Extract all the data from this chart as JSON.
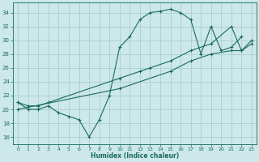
{
  "xlabel": "Humidex (Indice chaleur)",
  "bg_color": "#cce8e8",
  "grid_color": "#aacece",
  "line_color": "#1a6b5a",
  "xlim": [
    -0.5,
    23.5
  ],
  "ylim": [
    15,
    35.5
  ],
  "yticks": [
    16,
    18,
    20,
    22,
    24,
    26,
    28,
    30,
    32,
    34
  ],
  "xticks": [
    0,
    1,
    2,
    3,
    4,
    5,
    6,
    7,
    8,
    9,
    10,
    11,
    12,
    13,
    14,
    15,
    16,
    17,
    18,
    19,
    20,
    21,
    22,
    23
  ],
  "line1_x": [
    0,
    1,
    2,
    3,
    4,
    5,
    6,
    7,
    8,
    9,
    10,
    11,
    12,
    13,
    14,
    15,
    16,
    17,
    18,
    19,
    20,
    21,
    22
  ],
  "line1_y": [
    21,
    20,
    20,
    20.5,
    19.5,
    19,
    18.5,
    16,
    18.5,
    22,
    29,
    30.5,
    33,
    34,
    34.2,
    34.5,
    34,
    33,
    28,
    32,
    28.5,
    29,
    30.5
  ],
  "line2_x": [
    0,
    1,
    2,
    3,
    10,
    12,
    13,
    15,
    17,
    19,
    21,
    22,
    23
  ],
  "line2_y": [
    21,
    20.5,
    20.5,
    21,
    24.5,
    25.5,
    26,
    27,
    28.5,
    29.5,
    32,
    28.5,
    29.5
  ],
  "line3_x": [
    0,
    10,
    15,
    17,
    19,
    21,
    22,
    23
  ],
  "line3_y": [
    20,
    23,
    25.5,
    27,
    28,
    28.5,
    28.5,
    30
  ]
}
